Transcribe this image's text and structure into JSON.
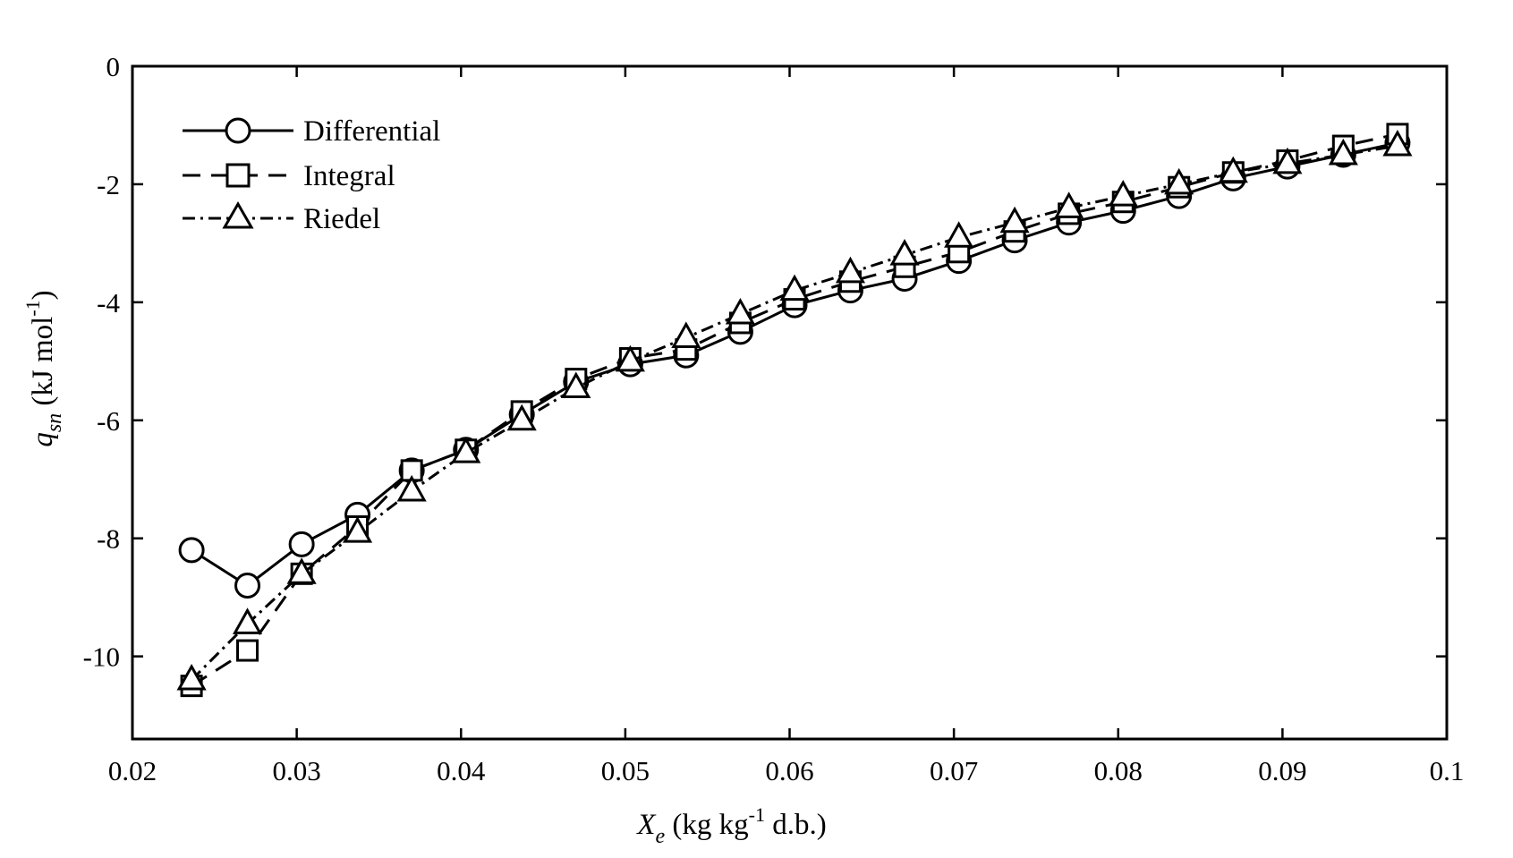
{
  "chart_data": {
    "type": "line",
    "xlim": [
      0.02,
      0.1
    ],
    "ylim": [
      -11.4,
      0
    ],
    "x_ticks": [
      "0.02",
      "0.03",
      "0.04",
      "0.05",
      "0.06",
      "0.07",
      "0.08",
      "0.09",
      "0.1"
    ],
    "x_tick_values": [
      0.02,
      0.03,
      0.04,
      0.05,
      0.06,
      0.07,
      0.08,
      0.09,
      0.1
    ],
    "y_ticks": [
      "0",
      "-2",
      "-4",
      "-6",
      "-8",
      "-10"
    ],
    "y_tick_values": [
      0,
      -2,
      -4,
      -6,
      -8,
      -10
    ],
    "xlabel": {
      "main": "X",
      "sub": "e",
      "unit_a": " (kg kg",
      "sup": "-1",
      "unit_b": " d.b.)"
    },
    "ylabel": {
      "main": "q",
      "sub": "sn",
      "unit_a": " (kJ mol",
      "sup": "-1",
      "unit_b": ")"
    },
    "legend_position": "top-left",
    "grid": false,
    "series": [
      {
        "name": "Differential",
        "marker": "circle",
        "dash": "solid",
        "x": [
          0.0236,
          0.027,
          0.0303,
          0.0337,
          0.037,
          0.0403,
          0.0437,
          0.047,
          0.0503,
          0.0537,
          0.057,
          0.0603,
          0.0637,
          0.067,
          0.0703,
          0.0737,
          0.077,
          0.0803,
          0.0837,
          0.087,
          0.0903,
          0.0937,
          0.097
        ],
        "y": [
          -8.2,
          -8.8,
          -8.1,
          -7.6,
          -6.85,
          -6.5,
          -5.9,
          -5.35,
          -5.05,
          -4.9,
          -4.5,
          -4.05,
          -3.8,
          -3.6,
          -3.3,
          -2.95,
          -2.65,
          -2.45,
          -2.2,
          -1.9,
          -1.7,
          -1.5,
          -1.3
        ]
      },
      {
        "name": "Integral",
        "marker": "square",
        "dash": "dashed",
        "x": [
          0.0236,
          0.027,
          0.0303,
          0.0337,
          0.037,
          0.0403,
          0.0437,
          0.047,
          0.0503,
          0.0537,
          0.057,
          0.0603,
          0.0637,
          0.067,
          0.0703,
          0.0737,
          0.077,
          0.0803,
          0.0837,
          0.087,
          0.0903,
          0.0937,
          0.097
        ],
        "y": [
          -10.5,
          -9.9,
          -8.6,
          -7.8,
          -6.85,
          -6.5,
          -5.85,
          -5.3,
          -4.95,
          -4.8,
          -4.35,
          -3.95,
          -3.65,
          -3.4,
          -3.15,
          -2.8,
          -2.5,
          -2.3,
          -2.05,
          -1.8,
          -1.6,
          -1.35,
          -1.15
        ]
      },
      {
        "name": "Riedel",
        "marker": "triangle",
        "dash": "dashdot",
        "x": [
          0.0236,
          0.027,
          0.0303,
          0.0337,
          0.037,
          0.0403,
          0.0437,
          0.047,
          0.0503,
          0.0537,
          0.057,
          0.0603,
          0.0637,
          0.067,
          0.0703,
          0.0737,
          0.077,
          0.0803,
          0.0837,
          0.087,
          0.0903,
          0.0937,
          0.097
        ],
        "y": [
          -10.4,
          -9.45,
          -8.6,
          -7.9,
          -7.2,
          -6.55,
          -6.0,
          -5.45,
          -5.0,
          -4.6,
          -4.2,
          -3.8,
          -3.5,
          -3.2,
          -2.9,
          -2.65,
          -2.4,
          -2.2,
          -2.0,
          -1.8,
          -1.65,
          -1.5,
          -1.35
        ]
      }
    ]
  }
}
